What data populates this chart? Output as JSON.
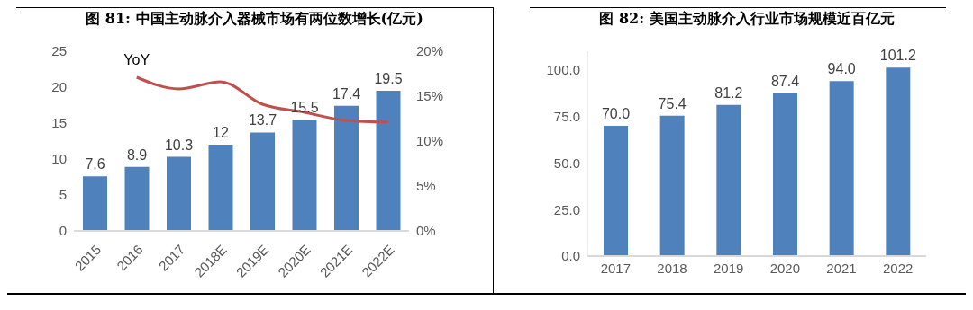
{
  "chart_data": [
    {
      "type": "bar",
      "title": "图 81: 中国主动脉介入器械市场有两位数增长(亿元)",
      "categories": [
        "2015",
        "2016",
        "2017",
        "2018E",
        "2019E",
        "2020E",
        "2021E",
        "2022E"
      ],
      "series": [
        {
          "color": "#4f81bd",
          "values": [
            7.6,
            8.9,
            10.3,
            12,
            13.7,
            15.5,
            17.4,
            19.5
          ],
          "value_labels": [
            "7.6",
            "8.9",
            "10.3",
            "12",
            "13.7",
            "15.5",
            "17.4",
            "19.5"
          ]
        },
        {
          "type": "line",
          "name": "YoY",
          "axis": "y2",
          "color": "#c0504d",
          "values": [
            null,
            17.1,
            15.8,
            16.6,
            14.1,
            13.2,
            12.3,
            12.1
          ]
        }
      ],
      "ylim": [
        0,
        25
      ],
      "yticks": [
        0,
        5,
        10,
        15,
        20,
        25
      ],
      "y2lim": [
        0,
        20
      ],
      "y2ticks": [
        {
          "value": 0,
          "label": "0%"
        },
        {
          "value": 5,
          "label": "5%"
        },
        {
          "value": 10,
          "label": "10%"
        },
        {
          "value": 15,
          "label": "15%"
        },
        {
          "value": 20,
          "label": "20%"
        }
      ]
    },
    {
      "type": "bar",
      "title": "图 82: 美国主动脉介入行业市场规模近百亿元",
      "categories": [
        "2017",
        "2018",
        "2019",
        "2020",
        "2021",
        "2022"
      ],
      "values": [
        70.0,
        75.4,
        81.2,
        87.4,
        94.0,
        101.2
      ],
      "color": "#4f81bd",
      "value_labels": [
        "70.0",
        "75.4",
        "81.2",
        "87.4",
        "94.0",
        "101.2"
      ],
      "ylim": [
        0,
        110
      ],
      "yticks": [
        {
          "value": 0,
          "label": "0.0"
        },
        {
          "value": 25,
          "label": "25.0"
        },
        {
          "value": 50,
          "label": "50.0"
        },
        {
          "value": 75,
          "label": "75.0"
        },
        {
          "value": 100,
          "label": "100.0"
        }
      ]
    }
  ]
}
